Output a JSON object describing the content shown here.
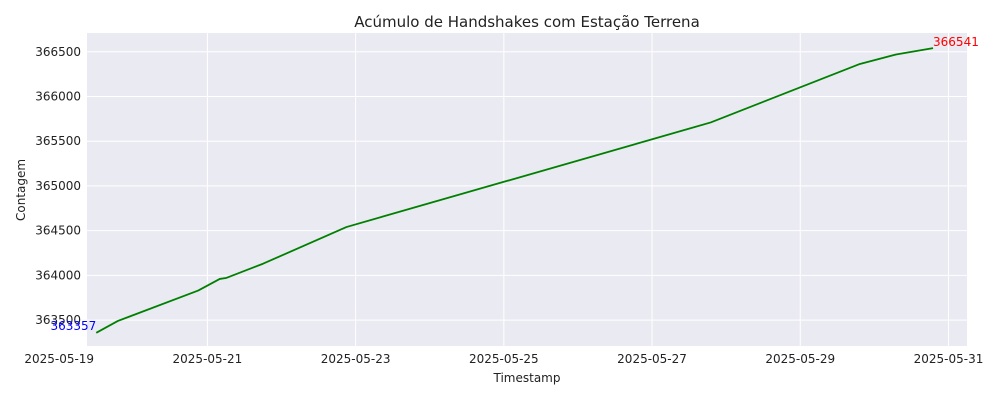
{
  "chart_data": {
    "type": "line",
    "title": "Acúmulo de Handshakes com Estação Terrena",
    "xlabel": "Timestamp",
    "ylabel": "Contagem",
    "x_type": "datetime",
    "xlim": [
      "2025-05-19 09:00",
      "2025-05-31 06:00"
    ],
    "ylim": [
      363210,
      366710
    ],
    "grid": true,
    "legend": "none",
    "colors": {
      "background": "#eaeaf2",
      "grid": "#ffffff",
      "line": "#008000",
      "start_annotation": "#0000ff",
      "end_annotation": "#ff0000"
    },
    "x_ticks": [
      "2025-05-19",
      "2025-05-21",
      "2025-05-23",
      "2025-05-25",
      "2025-05-27",
      "2025-05-29",
      "2025-05-31"
    ],
    "y_ticks": [
      363500,
      364000,
      364500,
      365000,
      365500,
      366000,
      366500
    ],
    "series": [
      {
        "x": [
          "2025-05-19 12:00",
          "2025-05-19 19:00",
          "2025-05-20 21:00",
          "2025-05-21 04:00",
          "2025-05-21 06:00",
          "2025-05-21 18:00",
          "2025-05-22 21:00",
          "2025-05-27 19:00",
          "2025-05-29 19:00",
          "2025-05-30 07:00",
          "2025-05-30 19:00"
        ],
        "y": [
          363357,
          363490,
          363830,
          363960,
          363970,
          364130,
          364540,
          365710,
          366360,
          366470,
          366541
        ]
      }
    ],
    "annotations": [
      {
        "label": "363357",
        "color": "#0000ff",
        "anchor": "start"
      },
      {
        "label": "366541",
        "color": "#ff0000",
        "anchor": "end"
      }
    ]
  }
}
